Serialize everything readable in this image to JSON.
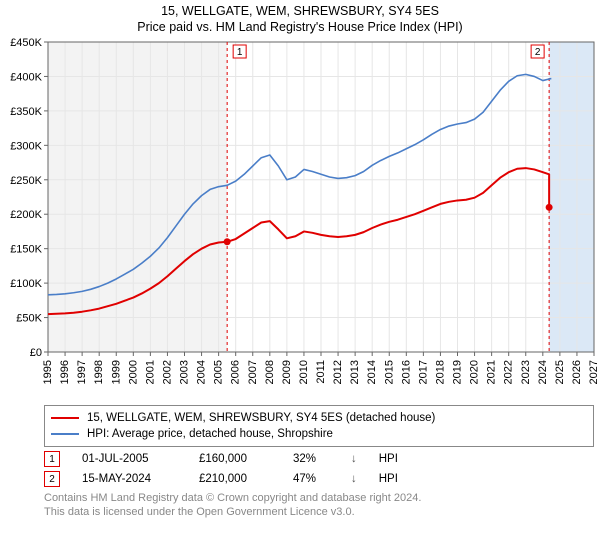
{
  "title_line1": "15, WELLGATE, WEM, SHREWSBURY, SY4 5ES",
  "title_line2": "Price paid vs. HM Land Registry's House Price Index (HPI)",
  "chart": {
    "type": "line",
    "background_color": "#ffffff",
    "plot_bg_color": "#ffffff",
    "pre_start_band_color": "#f3f3f3",
    "post_last_band_color": "#dbe8f6",
    "grid_color": "#e6e6e6",
    "axis_color": "#666666",
    "x": {
      "min": 1995,
      "max": 2027,
      "ticks": [
        1995,
        1996,
        1997,
        1998,
        1999,
        2000,
        2001,
        2002,
        2003,
        2004,
        2005,
        2006,
        2007,
        2008,
        2009,
        2010,
        2011,
        2012,
        2013,
        2014,
        2015,
        2016,
        2017,
        2018,
        2019,
        2020,
        2021,
        2022,
        2023,
        2024,
        2025,
        2026,
        2027
      ]
    },
    "y": {
      "min": 0,
      "max": 450000,
      "tick_step": 50000,
      "labels": [
        "£0",
        "£50K",
        "£100K",
        "£150K",
        "£200K",
        "£250K",
        "£300K",
        "£350K",
        "£400K",
        "£450K"
      ]
    },
    "series": [
      {
        "name": "subject_property",
        "color": "#e00000",
        "width": 2,
        "legend": "15, WELLGATE, WEM, SHREWSBURY, SY4 5ES (detached house)",
        "points": [
          [
            1995.0,
            55000
          ],
          [
            1995.5,
            55500
          ],
          [
            1996.0,
            56000
          ],
          [
            1996.5,
            57000
          ],
          [
            1997.0,
            58500
          ],
          [
            1997.5,
            60500
          ],
          [
            1998.0,
            63000
          ],
          [
            1998.5,
            66500
          ],
          [
            1999.0,
            70000
          ],
          [
            1999.5,
            74500
          ],
          [
            2000.0,
            79000
          ],
          [
            2000.5,
            85000
          ],
          [
            2001.0,
            92000
          ],
          [
            2001.5,
            100000
          ],
          [
            2002.0,
            110000
          ],
          [
            2002.5,
            121000
          ],
          [
            2003.0,
            132000
          ],
          [
            2003.5,
            142000
          ],
          [
            2004.0,
            150000
          ],
          [
            2004.5,
            156000
          ],
          [
            2005.0,
            159000
          ],
          [
            2005.5,
            160000
          ],
          [
            2006.0,
            164000
          ],
          [
            2006.5,
            172000
          ],
          [
            2007.0,
            180000
          ],
          [
            2007.5,
            188000
          ],
          [
            2008.0,
            190000
          ],
          [
            2008.5,
            178000
          ],
          [
            2009.0,
            165000
          ],
          [
            2009.5,
            168000
          ],
          [
            2010.0,
            175000
          ],
          [
            2010.5,
            173000
          ],
          [
            2011.0,
            170000
          ],
          [
            2011.5,
            168000
          ],
          [
            2012.0,
            167000
          ],
          [
            2012.5,
            168000
          ],
          [
            2013.0,
            170000
          ],
          [
            2013.5,
            174000
          ],
          [
            2014.0,
            180000
          ],
          [
            2014.5,
            185000
          ],
          [
            2015.0,
            189000
          ],
          [
            2015.5,
            192000
          ],
          [
            2016.0,
            196000
          ],
          [
            2016.5,
            200000
          ],
          [
            2017.0,
            205000
          ],
          [
            2017.5,
            210000
          ],
          [
            2018.0,
            215000
          ],
          [
            2018.5,
            218000
          ],
          [
            2019.0,
            220000
          ],
          [
            2019.5,
            221000
          ],
          [
            2020.0,
            224000
          ],
          [
            2020.5,
            231000
          ],
          [
            2021.0,
            242000
          ],
          [
            2021.5,
            253000
          ],
          [
            2022.0,
            261000
          ],
          [
            2022.5,
            266000
          ],
          [
            2023.0,
            267000
          ],
          [
            2023.5,
            265000
          ],
          [
            2024.0,
            261000
          ],
          [
            2024.37,
            258000
          ],
          [
            2024.371,
            210000
          ],
          [
            2024.5,
            211000
          ]
        ]
      },
      {
        "name": "hpi",
        "color": "#4a7ec8",
        "width": 1.6,
        "legend": "HPI: Average price, detached house, Shropshire",
        "points": [
          [
            1995.0,
            83000
          ],
          [
            1995.5,
            83500
          ],
          [
            1996.0,
            84500
          ],
          [
            1996.5,
            86000
          ],
          [
            1997.0,
            88000
          ],
          [
            1997.5,
            91000
          ],
          [
            1998.0,
            95000
          ],
          [
            1998.5,
            100000
          ],
          [
            1999.0,
            106000
          ],
          [
            1999.5,
            113000
          ],
          [
            2000.0,
            120000
          ],
          [
            2000.5,
            129000
          ],
          [
            2001.0,
            139000
          ],
          [
            2001.5,
            151000
          ],
          [
            2002.0,
            166000
          ],
          [
            2002.5,
            183000
          ],
          [
            2003.0,
            200000
          ],
          [
            2003.5,
            215000
          ],
          [
            2004.0,
            227000
          ],
          [
            2004.5,
            236000
          ],
          [
            2005.0,
            240000
          ],
          [
            2005.5,
            242000
          ],
          [
            2006.0,
            248000
          ],
          [
            2006.5,
            258000
          ],
          [
            2007.0,
            270000
          ],
          [
            2007.5,
            282000
          ],
          [
            2008.0,
            286000
          ],
          [
            2008.5,
            270000
          ],
          [
            2009.0,
            250000
          ],
          [
            2009.5,
            254000
          ],
          [
            2010.0,
            265000
          ],
          [
            2010.5,
            262000
          ],
          [
            2011.0,
            258000
          ],
          [
            2011.5,
            254000
          ],
          [
            2012.0,
            252000
          ],
          [
            2012.5,
            253000
          ],
          [
            2013.0,
            256000
          ],
          [
            2013.5,
            262000
          ],
          [
            2014.0,
            271000
          ],
          [
            2014.5,
            278000
          ],
          [
            2015.0,
            284000
          ],
          [
            2015.5,
            289000
          ],
          [
            2016.0,
            295000
          ],
          [
            2016.5,
            301000
          ],
          [
            2017.0,
            308000
          ],
          [
            2017.5,
            316000
          ],
          [
            2018.0,
            323000
          ],
          [
            2018.5,
            328000
          ],
          [
            2019.0,
            331000
          ],
          [
            2019.5,
            333000
          ],
          [
            2020.0,
            338000
          ],
          [
            2020.5,
            348000
          ],
          [
            2021.0,
            364000
          ],
          [
            2021.5,
            380000
          ],
          [
            2022.0,
            393000
          ],
          [
            2022.5,
            401000
          ],
          [
            2023.0,
            403000
          ],
          [
            2023.5,
            400000
          ],
          [
            2024.0,
            394000
          ],
          [
            2024.5,
            397000
          ]
        ]
      }
    ],
    "markers": [
      {
        "n": 1,
        "x": 2005.5,
        "y": 160000,
        "color": "#e00000"
      },
      {
        "n": 2,
        "x": 2024.37,
        "y": 210000,
        "color": "#e00000"
      }
    ],
    "marker_flag_border": "#e00000",
    "marker_flag_fill": "#ffffff"
  },
  "sales": [
    {
      "n": "1",
      "date": "01-JUL-2005",
      "price": "£160,000",
      "pct": "32%",
      "rel": "HPI"
    },
    {
      "n": "2",
      "date": "15-MAY-2024",
      "price": "£210,000",
      "pct": "47%",
      "rel": "HPI"
    }
  ],
  "footnote1": "Contains HM Land Registry data © Crown copyright and database right 2024.",
  "footnote2": "This data is licensed under the Open Government Licence v3.0."
}
